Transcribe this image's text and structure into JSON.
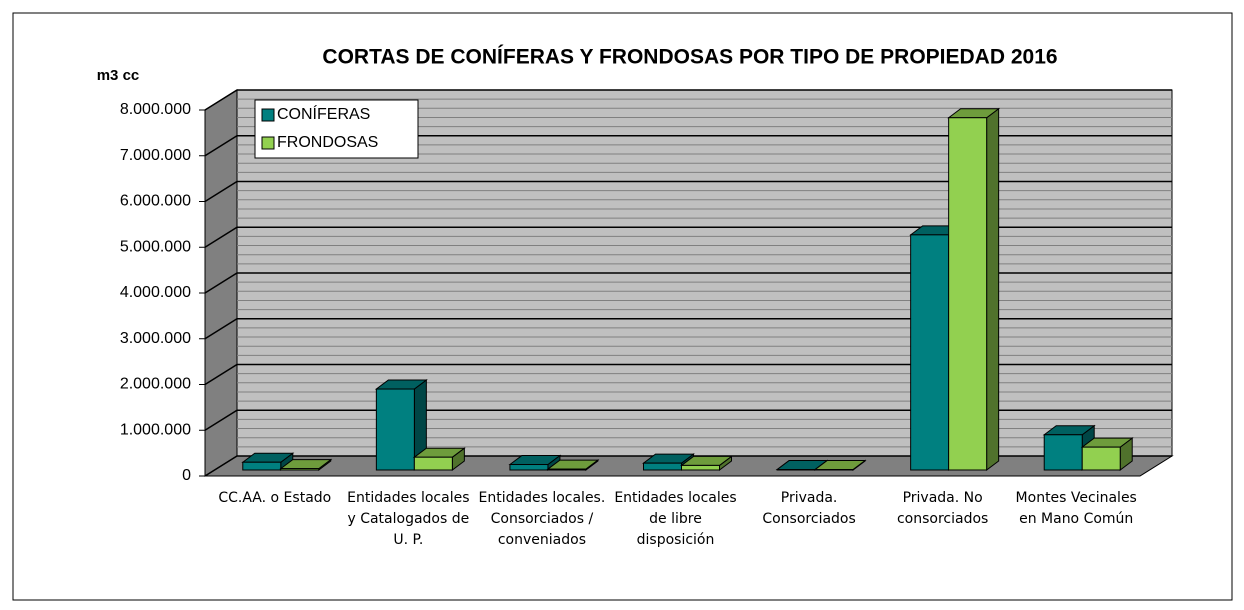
{
  "chart_data": {
    "type": "bar3d",
    "title": "CORTAS DE CONÍFERAS Y FRONDOSAS POR TIPO DE PROPIEDAD 2016",
    "y_label": "m3 cc",
    "categories": [
      "CC.AA. o Estado",
      "Entidades locales y Catalogados de U. P.",
      "Entidades locales. Consorciados / conveniados",
      "Entidades locales de libre disposición",
      "Privada. Consorciados",
      "Privada. No consorciados",
      "Montes Vecinales en Mano Común"
    ],
    "series": [
      {
        "name": "CONÍFERAS",
        "color": "#008080",
        "values": [
          170000,
          1770000,
          120000,
          150000,
          10000,
          5140000,
          770000
        ]
      },
      {
        "name": "FRONDOSAS",
        "color": "#92d050",
        "values": [
          30000,
          280000,
          20000,
          100000,
          10000,
          7700000,
          500000
        ]
      }
    ],
    "ylim": [
      0,
      8000000
    ],
    "yticks": [
      0,
      {
        "value": 1000000,
        "label": "1.000.000"
      },
      {
        "value": 2000000,
        "label": "2.000.000"
      },
      {
        "value": 3000000,
        "label": "3.000.000"
      },
      {
        "value": 4000000,
        "label": "4.000.000"
      },
      {
        "value": 5000000,
        "label": "5.000.000"
      },
      {
        "value": 6000000,
        "label": "6.000.000"
      },
      {
        "value": 7000000,
        "label": "7.000.000"
      },
      {
        "value": 8000000,
        "label": "8.000.000"
      }
    ],
    "grid": true,
    "legend": "upper left"
  }
}
